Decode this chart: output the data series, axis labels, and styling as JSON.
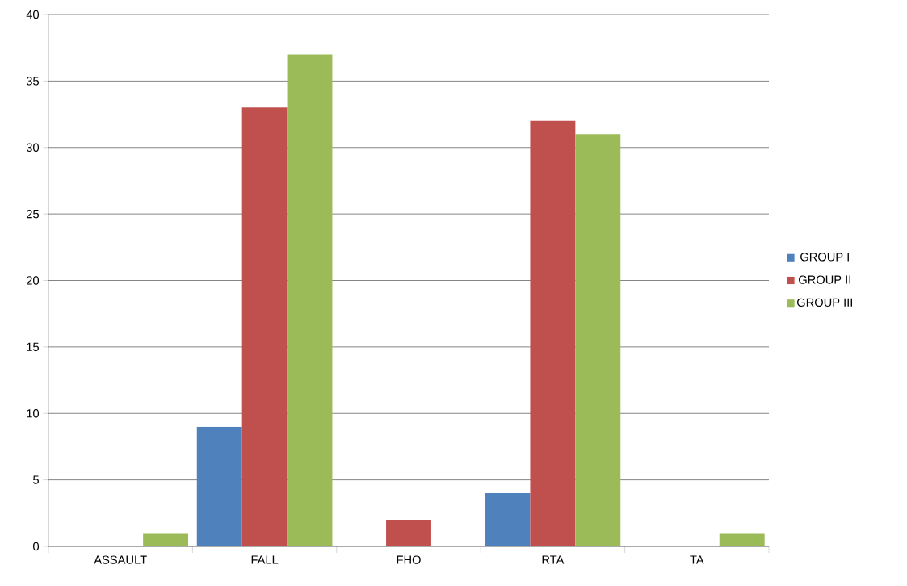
{
  "chart_data": {
    "type": "bar",
    "categories": [
      "ASSAULT",
      "FALL",
      "FHO",
      "RTA",
      "TA"
    ],
    "series": [
      {
        "name": "GROUP I",
        "color": "#4f81bd",
        "values": [
          0,
          9,
          0,
          4,
          0
        ]
      },
      {
        "name": "GROUP II",
        "color": "#c0504d",
        "values": [
          0,
          33,
          2,
          32,
          0
        ]
      },
      {
        "name": "GROUP III",
        "color": "#9bbb59",
        "values": [
          1,
          37,
          0,
          31,
          1
        ]
      }
    ],
    "ylim": [
      0,
      40
    ],
    "yticks": [
      0,
      5,
      10,
      15,
      20,
      25,
      30,
      35,
      40
    ],
    "grid": "y",
    "legend": "right"
  }
}
